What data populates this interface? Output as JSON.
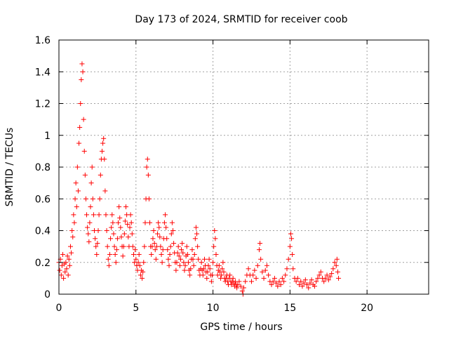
{
  "chart_data": {
    "type": "scatter",
    "title": "Day 173 of 2024, SRMTID for receiver coob",
    "xlabel": "GPS time / hours",
    "ylabel": "SRMTID / TECUs",
    "xlim": [
      0,
      24
    ],
    "ylim": [
      0,
      1.6
    ],
    "xticks": [
      0,
      5,
      10,
      15,
      20
    ],
    "xtick_labels": [
      "0",
      "5",
      "10",
      "15",
      "20"
    ],
    "yticks": [
      0,
      0.2,
      0.4,
      0.6,
      0.8,
      1.0,
      1.2,
      1.4,
      1.6
    ],
    "ytick_labels": [
      "0",
      "0.2",
      "0.4",
      "0.6",
      "0.8",
      "1",
      "1.2",
      "1.4",
      "1.6"
    ],
    "grid": true,
    "marker": "+",
    "color": "#ff0000",
    "series": [
      {
        "name": "coob",
        "points": [
          [
            0.0,
            0.2
          ],
          [
            0.05,
            0.15
          ],
          [
            0.1,
            0.22
          ],
          [
            0.15,
            0.12
          ],
          [
            0.2,
            0.18
          ],
          [
            0.25,
            0.25
          ],
          [
            0.3,
            0.1
          ],
          [
            0.35,
            0.19
          ],
          [
            0.4,
            0.14
          ],
          [
            0.45,
            0.2
          ],
          [
            0.5,
            0.16
          ],
          [
            0.55,
            0.24
          ],
          [
            0.6,
            0.12
          ],
          [
            0.65,
            0.22
          ],
          [
            0.7,
            0.18
          ],
          [
            0.75,
            0.3
          ],
          [
            0.8,
            0.26
          ],
          [
            0.85,
            0.4
          ],
          [
            0.9,
            0.36
          ],
          [
            0.95,
            0.5
          ],
          [
            1.0,
            0.45
          ],
          [
            1.05,
            0.6
          ],
          [
            1.1,
            0.7
          ],
          [
            1.15,
            0.55
          ],
          [
            1.2,
            0.8
          ],
          [
            1.25,
            0.65
          ],
          [
            1.3,
            0.95
          ],
          [
            1.35,
            1.05
          ],
          [
            1.4,
            1.2
          ],
          [
            1.45,
            1.35
          ],
          [
            1.5,
            1.45
          ],
          [
            1.55,
            1.4
          ],
          [
            1.6,
            1.1
          ],
          [
            1.65,
            0.9
          ],
          [
            1.7,
            0.75
          ],
          [
            1.75,
            0.6
          ],
          [
            1.8,
            0.5
          ],
          [
            1.85,
            0.42
          ],
          [
            1.9,
            0.38
          ],
          [
            1.95,
            0.33
          ],
          [
            2.0,
            0.45
          ],
          [
            2.05,
            0.55
          ],
          [
            2.1,
            0.7
          ],
          [
            2.15,
            0.8
          ],
          [
            2.2,
            0.6
          ],
          [
            2.25,
            0.5
          ],
          [
            2.3,
            0.4
          ],
          [
            2.35,
            0.35
          ],
          [
            2.4,
            0.3
          ],
          [
            2.45,
            0.25
          ],
          [
            2.5,
            0.32
          ],
          [
            2.55,
            0.4
          ],
          [
            2.6,
            0.5
          ],
          [
            2.65,
            0.6
          ],
          [
            2.7,
            0.75
          ],
          [
            2.75,
            0.85
          ],
          [
            2.8,
            0.9
          ],
          [
            2.85,
            0.95
          ],
          [
            2.9,
            0.98
          ],
          [
            2.95,
            0.85
          ],
          [
            3.0,
            0.65
          ],
          [
            3.05,
            0.5
          ],
          [
            3.1,
            0.4
          ],
          [
            3.15,
            0.3
          ],
          [
            3.2,
            0.22
          ],
          [
            3.25,
            0.18
          ],
          [
            3.3,
            0.25
          ],
          [
            3.35,
            0.35
          ],
          [
            3.4,
            0.42
          ],
          [
            3.45,
            0.5
          ],
          [
            3.5,
            0.45
          ],
          [
            3.55,
            0.38
          ],
          [
            3.6,
            0.3
          ],
          [
            3.65,
            0.25
          ],
          [
            3.7,
            0.2
          ],
          [
            3.75,
            0.28
          ],
          [
            3.8,
            0.35
          ],
          [
            3.85,
            0.45
          ],
          [
            3.9,
            0.55
          ],
          [
            3.95,
            0.48
          ],
          [
            4.0,
            0.42
          ],
          [
            4.05,
            0.36
          ],
          [
            4.1,
            0.3
          ],
          [
            4.15,
            0.24
          ],
          [
            4.2,
            0.3
          ],
          [
            4.25,
            0.38
          ],
          [
            4.3,
            0.46
          ],
          [
            4.35,
            0.55
          ],
          [
            4.4,
            0.5
          ],
          [
            4.45,
            0.44
          ],
          [
            4.5,
            0.36
          ],
          [
            4.55,
            0.3
          ],
          [
            4.6,
            0.42
          ],
          [
            4.65,
            0.5
          ],
          [
            4.7,
            0.45
          ],
          [
            4.75,
            0.38
          ],
          [
            4.8,
            0.3
          ],
          [
            4.85,
            0.25
          ],
          [
            4.9,
            0.2
          ],
          [
            4.95,
            0.28
          ],
          [
            5.0,
            0.22
          ],
          [
            5.05,
            0.18
          ],
          [
            5.1,
            0.15
          ],
          [
            5.15,
            0.2
          ],
          [
            5.2,
            0.25
          ],
          [
            5.25,
            0.18
          ],
          [
            5.3,
            0.12
          ],
          [
            5.35,
            0.15
          ],
          [
            5.4,
            0.1
          ],
          [
            5.45,
            0.14
          ],
          [
            5.5,
            0.2
          ],
          [
            5.55,
            0.3
          ],
          [
            5.6,
            0.45
          ],
          [
            5.65,
            0.6
          ],
          [
            5.7,
            0.8
          ],
          [
            5.75,
            0.85
          ],
          [
            5.8,
            0.75
          ],
          [
            5.85,
            0.6
          ],
          [
            5.9,
            0.45
          ],
          [
            5.95,
            0.3
          ],
          [
            6.0,
            0.25
          ],
          [
            6.05,
            0.3
          ],
          [
            6.1,
            0.35
          ],
          [
            6.15,
            0.4
          ],
          [
            6.2,
            0.32
          ],
          [
            6.25,
            0.28
          ],
          [
            6.3,
            0.22
          ],
          [
            6.35,
            0.3
          ],
          [
            6.4,
            0.38
          ],
          [
            6.45,
            0.45
          ],
          [
            6.5,
            0.42
          ],
          [
            6.55,
            0.36
          ],
          [
            6.6,
            0.3
          ],
          [
            6.65,
            0.25
          ],
          [
            6.7,
            0.2
          ],
          [
            6.75,
            0.28
          ],
          [
            6.8,
            0.35
          ],
          [
            6.85,
            0.45
          ],
          [
            6.9,
            0.5
          ],
          [
            6.95,
            0.42
          ],
          [
            7.0,
            0.35
          ],
          [
            7.05,
            0.28
          ],
          [
            7.1,
            0.22
          ],
          [
            7.15,
            0.18
          ],
          [
            7.2,
            0.25
          ],
          [
            7.25,
            0.3
          ],
          [
            7.3,
            0.38
          ],
          [
            7.35,
            0.45
          ],
          [
            7.4,
            0.4
          ],
          [
            7.45,
            0.32
          ],
          [
            7.5,
            0.26
          ],
          [
            7.55,
            0.2
          ],
          [
            7.6,
            0.15
          ],
          [
            7.65,
            0.2
          ],
          [
            7.7,
            0.26
          ],
          [
            7.75,
            0.3
          ],
          [
            7.8,
            0.24
          ],
          [
            7.85,
            0.18
          ],
          [
            7.9,
            0.22
          ],
          [
            7.95,
            0.28
          ],
          [
            8.0,
            0.32
          ],
          [
            8.05,
            0.26
          ],
          [
            8.1,
            0.2
          ],
          [
            8.15,
            0.15
          ],
          [
            8.2,
            0.18
          ],
          [
            8.25,
            0.24
          ],
          [
            8.3,
            0.3
          ],
          [
            8.35,
            0.25
          ],
          [
            8.4,
            0.2
          ],
          [
            8.45,
            0.15
          ],
          [
            8.5,
            0.12
          ],
          [
            8.55,
            0.16
          ],
          [
            8.6,
            0.22
          ],
          [
            8.65,
            0.28
          ],
          [
            8.7,
            0.22
          ],
          [
            8.75,
            0.18
          ],
          [
            8.8,
            0.25
          ],
          [
            8.85,
            0.35
          ],
          [
            8.9,
            0.42
          ],
          [
            8.95,
            0.38
          ],
          [
            9.0,
            0.3
          ],
          [
            9.05,
            0.22
          ],
          [
            9.1,
            0.15
          ],
          [
            9.15,
            0.12
          ],
          [
            9.2,
            0.16
          ],
          [
            9.25,
            0.2
          ],
          [
            9.3,
            0.15
          ],
          [
            9.35,
            0.12
          ],
          [
            9.4,
            0.16
          ],
          [
            9.45,
            0.22
          ],
          [
            9.5,
            0.18
          ],
          [
            9.55,
            0.14
          ],
          [
            9.6,
            0.1
          ],
          [
            9.65,
            0.14
          ],
          [
            9.7,
            0.18
          ],
          [
            9.75,
            0.22
          ],
          [
            9.8,
            0.16
          ],
          [
            9.85,
            0.12
          ],
          [
            9.9,
            0.08
          ],
          [
            9.95,
            0.12
          ],
          [
            10.0,
            0.2
          ],
          [
            10.05,
            0.3
          ],
          [
            10.1,
            0.4
          ],
          [
            10.15,
            0.35
          ],
          [
            10.2,
            0.25
          ],
          [
            10.25,
            0.18
          ],
          [
            10.3,
            0.12
          ],
          [
            10.35,
            0.15
          ],
          [
            10.4,
            0.18
          ],
          [
            10.45,
            0.14
          ],
          [
            10.5,
            0.1
          ],
          [
            10.55,
            0.12
          ],
          [
            10.6,
            0.16
          ],
          [
            10.65,
            0.2
          ],
          [
            10.7,
            0.14
          ],
          [
            10.75,
            0.1
          ],
          [
            10.8,
            0.08
          ],
          [
            10.85,
            0.1
          ],
          [
            10.9,
            0.12
          ],
          [
            10.95,
            0.08
          ],
          [
            11.0,
            0.06
          ],
          [
            11.05,
            0.1
          ],
          [
            11.1,
            0.12
          ],
          [
            11.15,
            0.08
          ],
          [
            11.2,
            0.06
          ],
          [
            11.25,
            0.08
          ],
          [
            11.3,
            0.1
          ],
          [
            11.35,
            0.07
          ],
          [
            11.4,
            0.05
          ],
          [
            11.45,
            0.08
          ],
          [
            11.5,
            0.06
          ],
          [
            11.55,
            0.04
          ],
          [
            11.6,
            0.06
          ],
          [
            11.7,
            0.08
          ],
          [
            11.8,
            0.05
          ],
          [
            11.9,
            0.02
          ],
          [
            11.95,
            0.0
          ],
          [
            12.0,
            0.04
          ],
          [
            12.1,
            0.08
          ],
          [
            12.2,
            0.12
          ],
          [
            12.3,
            0.16
          ],
          [
            12.4,
            0.12
          ],
          [
            12.5,
            0.08
          ],
          [
            12.6,
            0.12
          ],
          [
            12.7,
            0.15
          ],
          [
            12.8,
            0.1
          ],
          [
            12.9,
            0.18
          ],
          [
            13.0,
            0.28
          ],
          [
            13.05,
            0.32
          ],
          [
            13.1,
            0.22
          ],
          [
            13.2,
            0.14
          ],
          [
            13.3,
            0.1
          ],
          [
            13.4,
            0.15
          ],
          [
            13.5,
            0.18
          ],
          [
            13.6,
            0.12
          ],
          [
            13.7,
            0.08
          ],
          [
            13.8,
            0.06
          ],
          [
            13.9,
            0.08
          ],
          [
            14.0,
            0.1
          ],
          [
            14.1,
            0.07
          ],
          [
            14.2,
            0.05
          ],
          [
            14.3,
            0.08
          ],
          [
            14.4,
            0.06
          ],
          [
            14.5,
            0.1
          ],
          [
            14.6,
            0.08
          ],
          [
            14.7,
            0.12
          ],
          [
            14.8,
            0.16
          ],
          [
            14.9,
            0.22
          ],
          [
            15.0,
            0.3
          ],
          [
            15.05,
            0.38
          ],
          [
            15.1,
            0.35
          ],
          [
            15.15,
            0.25
          ],
          [
            15.2,
            0.16
          ],
          [
            15.3,
            0.1
          ],
          [
            15.4,
            0.08
          ],
          [
            15.5,
            0.1
          ],
          [
            15.6,
            0.06
          ],
          [
            15.7,
            0.08
          ],
          [
            15.8,
            0.05
          ],
          [
            15.9,
            0.07
          ],
          [
            16.0,
            0.09
          ],
          [
            16.1,
            0.06
          ],
          [
            16.2,
            0.04
          ],
          [
            16.3,
            0.07
          ],
          [
            16.4,
            0.09
          ],
          [
            16.5,
            0.06
          ],
          [
            16.6,
            0.05
          ],
          [
            16.7,
            0.08
          ],
          [
            16.8,
            0.1
          ],
          [
            16.9,
            0.12
          ],
          [
            17.0,
            0.14
          ],
          [
            17.1,
            0.1
          ],
          [
            17.2,
            0.08
          ],
          [
            17.3,
            0.1
          ],
          [
            17.4,
            0.12
          ],
          [
            17.5,
            0.09
          ],
          [
            17.6,
            0.11
          ],
          [
            17.7,
            0.13
          ],
          [
            17.8,
            0.16
          ],
          [
            17.9,
            0.2
          ],
          [
            18.0,
            0.18
          ],
          [
            18.05,
            0.22
          ],
          [
            18.1,
            0.14
          ],
          [
            18.15,
            0.1
          ]
        ]
      }
    ]
  }
}
